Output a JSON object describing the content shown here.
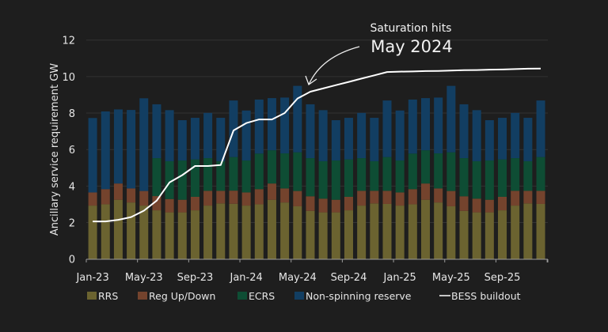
{
  "chart_data": {
    "type": "bar",
    "stacked": true,
    "ylabel": "Ancillary service requirement GW",
    "ylim": [
      0,
      12
    ],
    "yticks": [
      0,
      2,
      4,
      6,
      8,
      10,
      12
    ],
    "grid": "horizontal",
    "legend_position": "bottom",
    "categories": [
      "Jan-23",
      "Feb-23",
      "Mar-23",
      "Apr-23",
      "May-23",
      "Jun-23",
      "Jul-23",
      "Aug-23",
      "Sep-23",
      "Oct-23",
      "Nov-23",
      "Dec-23",
      "Jan-24",
      "Feb-24",
      "Mar-24",
      "Apr-24",
      "May-24",
      "Jun-24",
      "Jul-24",
      "Aug-24",
      "Sep-24",
      "Oct-24",
      "Nov-24",
      "Dec-24",
      "Jan-25",
      "Feb-25",
      "Mar-25",
      "Apr-25",
      "May-25",
      "Jun-25",
      "Jul-25",
      "Aug-25",
      "Sep-25",
      "Oct-25",
      "Nov-25",
      "Dec-25"
    ],
    "xtick_labels": [
      "Jan-23",
      "May-23",
      "Sep-23",
      "Jan-24",
      "May-24",
      "Sep-24",
      "Jan-25",
      "May-25",
      "Sep-25"
    ],
    "series": [
      {
        "name": "RRS",
        "color": "#6b6330",
        "values": [
          2.93,
          3.0,
          3.25,
          3.1,
          2.93,
          2.67,
          2.56,
          2.56,
          2.67,
          2.93,
          3.05,
          3.03,
          2.93,
          3.0,
          3.25,
          3.1,
          2.89,
          2.64,
          2.56,
          2.56,
          2.67,
          2.93,
          3.05,
          3.02,
          2.93,
          3.0,
          3.25,
          3.1,
          2.89,
          2.64,
          2.56,
          2.56,
          2.67,
          2.93,
          3.05,
          3.02
        ]
      },
      {
        "name": "Reg Up/Down",
        "color": "#74432d",
        "values": [
          0.72,
          0.83,
          0.89,
          0.77,
          0.8,
          0.78,
          0.73,
          0.69,
          0.74,
          0.81,
          0.69,
          0.72,
          0.72,
          0.83,
          0.89,
          0.77,
          0.84,
          0.8,
          0.75,
          0.69,
          0.74,
          0.81,
          0.69,
          0.72,
          0.72,
          0.83,
          0.89,
          0.77,
          0.84,
          0.8,
          0.75,
          0.69,
          0.74,
          0.81,
          0.69,
          0.72
        ]
      },
      {
        "name": "ECRS",
        "color": "#0e4d34",
        "values": [
          0,
          0,
          0,
          0,
          0,
          2.08,
          2.07,
          2.15,
          2.05,
          1.79,
          1.62,
          1.84,
          1.75,
          1.95,
          1.82,
          1.92,
          2.12,
          2.09,
          2.05,
          2.15,
          2.05,
          1.79,
          1.62,
          1.85,
          1.75,
          1.95,
          1.82,
          1.92,
          2.12,
          2.09,
          2.05,
          2.15,
          2.05,
          1.79,
          1.62,
          1.85
        ]
      },
      {
        "name": "Non-spinning reserve",
        "color": "#123e62",
        "values": [
          4.08,
          4.26,
          4.06,
          4.3,
          5.08,
          2.95,
          2.8,
          2.21,
          2.28,
          2.48,
          2.38,
          3.1,
          2.74,
          2.96,
          2.86,
          3.06,
          3.64,
          2.95,
          2.8,
          2.21,
          2.28,
          2.48,
          2.38,
          3.1,
          2.74,
          2.96,
          2.86,
          3.06,
          3.64,
          2.95,
          2.8,
          2.21,
          2.28,
          2.48,
          2.38,
          3.1
        ]
      }
    ],
    "line": {
      "name": "BESS buildout",
      "color": "#ffffff",
      "values": [
        2.06,
        2.06,
        2.15,
        2.3,
        2.65,
        3.2,
        4.2,
        4.6,
        5.1,
        5.1,
        5.15,
        7.05,
        7.45,
        7.65,
        7.65,
        8.0,
        8.8,
        9.17,
        9.35,
        9.53,
        9.71,
        9.89,
        10.07,
        10.25,
        10.27,
        10.28,
        10.3,
        10.31,
        10.33,
        10.35,
        10.36,
        10.38,
        10.39,
        10.41,
        10.43,
        10.44
      ]
    },
    "annotation": {
      "line1": "Saturation hits",
      "line2": "May 2024",
      "points_to": "May-24"
    }
  }
}
